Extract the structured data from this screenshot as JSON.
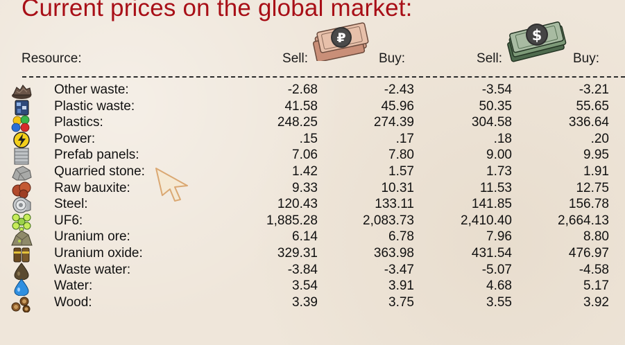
{
  "title": "Current prices on the global market:",
  "header": {
    "resource": "Resource:",
    "rub_sell": "Sell:",
    "rub_buy": "Buy:",
    "usd_sell": "Sell:",
    "usd_buy": "Buy:"
  },
  "currency_icons": [
    "ruble-banknotes-icon",
    "dollar-banknotes-icon"
  ],
  "rows": [
    {
      "name": "Other waste:",
      "icon": "other-waste-icon",
      "rub_sell": "-2.68",
      "rub_buy": "-2.43",
      "usd_sell": "-3.54",
      "usd_buy": "-3.21"
    },
    {
      "name": "Plastic waste:",
      "icon": "plastic-waste-icon",
      "rub_sell": "41.58",
      "rub_buy": "45.96",
      "usd_sell": "50.35",
      "usd_buy": "55.65"
    },
    {
      "name": "Plastics:",
      "icon": "plastics-icon",
      "rub_sell": "248.25",
      "rub_buy": "274.39",
      "usd_sell": "304.58",
      "usd_buy": "336.64"
    },
    {
      "name": "Power:",
      "icon": "power-icon",
      "rub_sell": ".15",
      "rub_buy": ".17",
      "usd_sell": ".18",
      "usd_buy": ".20"
    },
    {
      "name": "Prefab panels:",
      "icon": "prefab-panels-icon",
      "rub_sell": "7.06",
      "rub_buy": "7.80",
      "usd_sell": "9.00",
      "usd_buy": "9.95"
    },
    {
      "name": "Quarried stone:",
      "icon": "quarried-stone-icon",
      "rub_sell": "1.42",
      "rub_buy": "1.57",
      "usd_sell": "1.73",
      "usd_buy": "1.91"
    },
    {
      "name": "Raw bauxite:",
      "icon": "raw-bauxite-icon",
      "rub_sell": "9.33",
      "rub_buy": "10.31",
      "usd_sell": "11.53",
      "usd_buy": "12.75"
    },
    {
      "name": "Steel:",
      "icon": "steel-icon",
      "rub_sell": "120.43",
      "rub_buy": "133.11",
      "usd_sell": "141.85",
      "usd_buy": "156.78"
    },
    {
      "name": "UF6:",
      "icon": "uf6-icon",
      "rub_sell": "1,885.28",
      "rub_buy": "2,083.73",
      "usd_sell": "2,410.40",
      "usd_buy": "2,664.13"
    },
    {
      "name": "Uranium ore:",
      "icon": "uranium-ore-icon",
      "rub_sell": "6.14",
      "rub_buy": "6.78",
      "usd_sell": "7.96",
      "usd_buy": "8.80"
    },
    {
      "name": "Uranium oxide:",
      "icon": "uranium-oxide-icon",
      "rub_sell": "329.31",
      "rub_buy": "363.98",
      "usd_sell": "431.54",
      "usd_buy": "476.97"
    },
    {
      "name": "Waste water:",
      "icon": "waste-water-icon",
      "rub_sell": "-3.84",
      "rub_buy": "-3.47",
      "usd_sell": "-5.07",
      "usd_buy": "-4.58"
    },
    {
      "name": "Water:",
      "icon": "water-icon",
      "rub_sell": "3.54",
      "rub_buy": "3.91",
      "usd_sell": "4.68",
      "usd_buy": "5.17"
    },
    {
      "name": "Wood:",
      "icon": "wood-icon",
      "rub_sell": "3.39",
      "rub_buy": "3.75",
      "usd_sell": "3.55",
      "usd_buy": "3.92"
    }
  ]
}
